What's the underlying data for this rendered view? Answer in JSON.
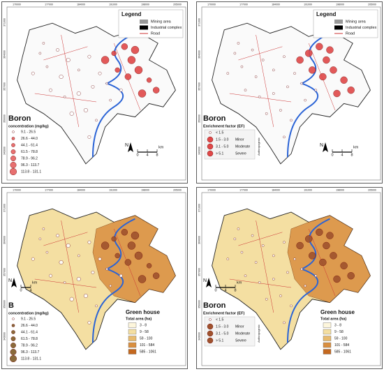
{
  "panels": [
    {
      "x_ticks": [
        "170000",
        "177000",
        "184000",
        "191000",
        "198000",
        "205000"
      ],
      "y_ticks": [
        "371000",
        "364000",
        "357000",
        "350000",
        "343000"
      ],
      "legend": {
        "title": "Legend",
        "items": [
          "Mining area",
          "Industrial complex",
          "Road"
        ]
      },
      "title": "Boron",
      "subtitle": "concentration (mg/kg)",
      "classes": [
        {
          "range": "9.1 - 26.5"
        },
        {
          "range": "26.6 - 44.0"
        },
        {
          "range": "44.1 - 61.4"
        },
        {
          "range": "61.5 - 78.8"
        },
        {
          "range": "78.9 - 96.2"
        },
        {
          "range": "96.3 - 113.7"
        },
        {
          "range": "113.8 - 131.1"
        }
      ],
      "north": "N",
      "scale": {
        "labels": [
          "0",
          "4",
          "8"
        ],
        "unit": "km"
      }
    },
    {
      "x_ticks": [
        "170000",
        "177000",
        "184000",
        "191000",
        "198000",
        "205000"
      ],
      "y_ticks": [
        "371000",
        "364000",
        "357000",
        "350000",
        "343000"
      ],
      "legend": {
        "title": "Legend",
        "items": [
          "Mining area",
          "Industrial complex",
          "Road"
        ]
      },
      "title": "Boron",
      "subtitle": "Enrichment factor (EF)",
      "classes": [
        {
          "range": "< 1.5"
        },
        {
          "range": "1.5 - 3.0",
          "label": "Minor"
        },
        {
          "range": "3.1 - 5.0",
          "label": "Moderate"
        },
        {
          "range": "> 5.1",
          "label": "Severe"
        }
      ],
      "side_label": "Anthropogenic",
      "north": "N",
      "scale": {
        "labels": [
          "0",
          "4",
          "8"
        ],
        "unit": "km"
      }
    },
    {
      "x_ticks": [
        "170000",
        "177000",
        "184000",
        "191000",
        "198000",
        "205000"
      ],
      "y_ticks": [
        "371000",
        "364000",
        "357000",
        "350000",
        "343000"
      ],
      "title": "B",
      "subtitle": "concentration (mg/kg)",
      "classes": [
        {
          "range": "9.1 - 26.5"
        },
        {
          "range": "26.6 - 44.0"
        },
        {
          "range": "44.1 - 61.4"
        },
        {
          "range": "61.5 - 78.8"
        },
        {
          "range": "78.9 - 96.2"
        },
        {
          "range": "96.3 - 113.7"
        },
        {
          "range": "113.8 - 131.1"
        }
      ],
      "north": "N",
      "scale": {
        "labels": [
          "0",
          "4"
        ],
        "unit": "km"
      },
      "greenhouse": {
        "title": "Green house",
        "subtitle": "Total area (ha)",
        "classes": [
          "3 - 8",
          "9 - 58",
          "59 - 100",
          "101 - 584",
          "585 - 1061"
        ],
        "colors": [
          "#fdf6dc",
          "#f4dfa2",
          "#e8bb6e",
          "#d98f40",
          "#c4681f"
        ]
      }
    },
    {
      "x_ticks": [
        "170000",
        "177000",
        "184000",
        "191000",
        "198000",
        "205000"
      ],
      "y_ticks": [
        "371000",
        "364000",
        "357000",
        "350000",
        "343000"
      ],
      "title": "Boron",
      "subtitle": "Enrichment factor (EF)",
      "classes": [
        {
          "range": "< 1.5"
        },
        {
          "range": "1.5 - 3.0",
          "label": "Minor"
        },
        {
          "range": "3.1 - 5.0",
          "label": "Moderate"
        },
        {
          "range": "> 5.1",
          "label": "Severe"
        }
      ],
      "side_label": "Anthropogenic",
      "north": "N",
      "scale": {
        "labels": [
          "0",
          "4",
          "8"
        ],
        "unit": "km"
      },
      "greenhouse": {
        "title": "Green house",
        "subtitle": "Total area (ha)",
        "classes": [
          "3 - 8",
          "9 - 58",
          "59 - 100",
          "101 - 584",
          "585 - 1061"
        ],
        "colors": [
          "#fdf6dc",
          "#f4dfa2",
          "#e8bb6e",
          "#d98f40",
          "#c4681f"
        ]
      }
    }
  ]
}
